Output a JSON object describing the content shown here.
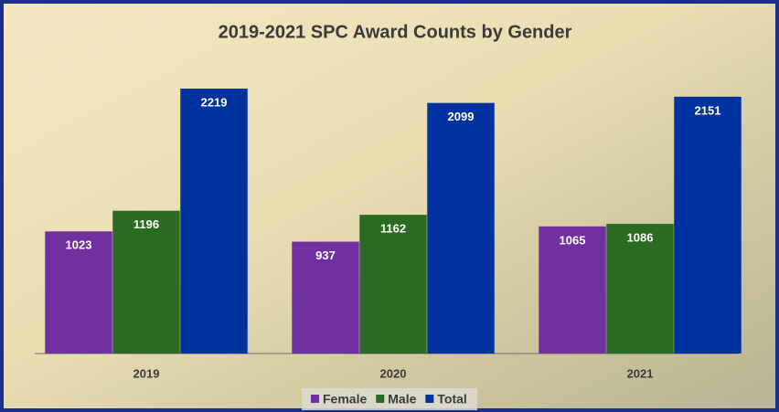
{
  "chart_data": {
    "type": "bar",
    "title": "2019-2021 SPC Award Counts by Gender",
    "categories": [
      "2019",
      "2020",
      "2021"
    ],
    "series": [
      {
        "name": "Female",
        "color": "#7030a0",
        "values": [
          1023,
          937,
          1065
        ]
      },
      {
        "name": "Male",
        "color": "#2a6a22",
        "values": [
          1196,
          1162,
          1086
        ]
      },
      {
        "name": "Total",
        "color": "#0033a0",
        "values": [
          2219,
          2099,
          2151
        ]
      }
    ],
    "legend": "bottom"
  }
}
